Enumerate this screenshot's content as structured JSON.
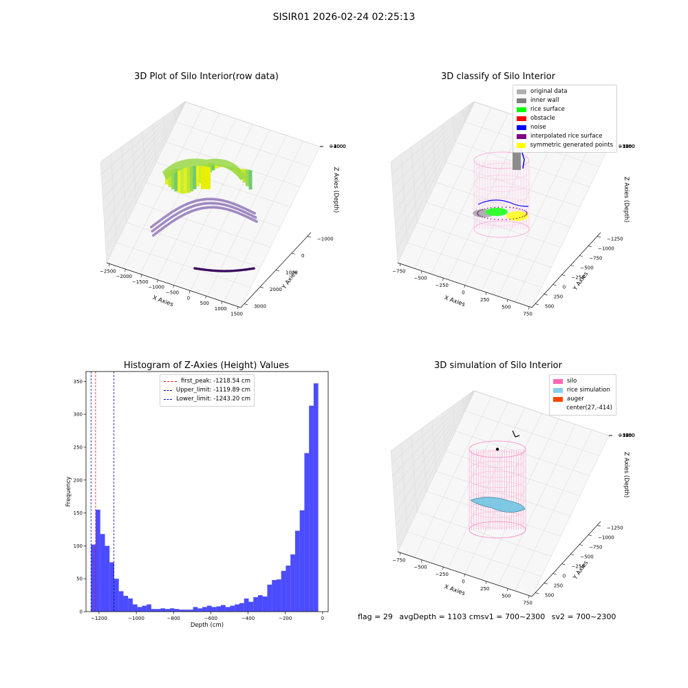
{
  "figure_title": "SISIR01 2026-02-24 02:25:13",
  "panels": {
    "raw": {
      "title": "3D Plot of Silo Interior(row data)",
      "xlabel": "X Axies",
      "ylabel": "Y Axies",
      "zlabel": "Z Axies (Depth)",
      "xticks": [
        "−2500",
        "−2000",
        "−1500",
        "−1000",
        "−500",
        "0",
        "500",
        "1000",
        "1500"
      ],
      "yticks": [
        "−1000",
        "0",
        "1000",
        "2000",
        "3000"
      ],
      "zticks": [
        "0",
        "−1000",
        "−2000",
        "−3000",
        "−4000"
      ]
    },
    "classify": {
      "title": "3D classify of Silo Interior",
      "xlabel": "X Axies",
      "ylabel": "Y Axies",
      "zlabel": "Z Axies (Depth)",
      "xticks": [
        "−750",
        "−500",
        "−250",
        "0",
        "250",
        "500",
        "750"
      ],
      "yticks": [
        "−1250",
        "−1000",
        "−750",
        "−500",
        "−250",
        "0",
        "250",
        "500"
      ],
      "zticks": [
        "0",
        "−250",
        "−500",
        "−750",
        "−1000",
        "−1250",
        "−1500",
        "−1750"
      ],
      "legend": [
        {
          "label": "original data",
          "color": "#b0b0b0"
        },
        {
          "label": "inner wall",
          "color": "#808080"
        },
        {
          "label": "rice surface",
          "color": "#00ff00"
        },
        {
          "label": "obstacle",
          "color": "#ff0000"
        },
        {
          "label": "noise",
          "color": "#0000ff"
        },
        {
          "label": "interpolated rice surface",
          "color": "#800080"
        },
        {
          "label": "symmetric generated points",
          "color": "#ffff00"
        }
      ]
    },
    "simulation": {
      "title": "3D simulation of Silo Interior",
      "xlabel": "X Axies",
      "ylabel": "Y Axies",
      "zlabel": "Z Axies (Depth)",
      "xticks": [
        "−750",
        "−500",
        "−250",
        "0",
        "250",
        "500",
        "750"
      ],
      "yticks": [
        "−1250",
        "−1000",
        "−750",
        "−500",
        "−250",
        "0",
        "250",
        "500"
      ],
      "zticks": [
        "0",
        "−250",
        "−500",
        "−750",
        "−1000",
        "−1250",
        "−1500",
        "−1750"
      ],
      "legend": [
        {
          "label": "silo",
          "color": "#ff69b4"
        },
        {
          "label": "rice simulation",
          "color": "#87ceeb"
        },
        {
          "label": "auger",
          "color": "#ff4500"
        },
        {
          "label": "center(27,-414)",
          "color": ""
        }
      ]
    }
  },
  "chart_data": {
    "type": "bar",
    "title": "Histogram of Z-Axies (Height) Values",
    "xlabel": "Depth (cm)",
    "ylabel": "Frequency",
    "xlim": [
      -1270,
      30
    ],
    "ylim": [
      0,
      365
    ],
    "xticks": [
      -1200,
      -1000,
      -800,
      -600,
      -400,
      -200,
      0
    ],
    "yticks": [
      0,
      50,
      100,
      150,
      200,
      250,
      300,
      350
    ],
    "bar_color": "#0000ff",
    "bin_width": 24.9,
    "bin_start": -1243.2,
    "values": [
      102,
      155,
      118,
      100,
      75,
      50,
      31,
      24,
      20,
      11,
      7,
      9,
      11,
      4,
      4,
      5,
      4,
      5,
      4,
      3,
      3,
      3,
      7,
      5,
      7,
      9,
      7,
      8,
      10,
      7,
      9,
      11,
      13,
      20,
      15,
      22,
      25,
      23,
      41,
      48,
      49,
      62,
      70,
      87,
      123,
      154,
      241,
      313,
      347
    ],
    "vlines": [
      {
        "label": "first_peak: -1218.54 cm",
        "x": -1218.54,
        "color": "#ff0000"
      },
      {
        "label": "Upper_limit: -1119.89 cm",
        "x": -1119.89,
        "color": "#00008b"
      },
      {
        "label": "Lower_limit: -1243.20 cm",
        "x": -1243.2,
        "color": "#0000cd"
      }
    ]
  },
  "footer": {
    "flag": "flag = 29",
    "avg": "avgDepth = 1103 cm",
    "sv1": "sv1 = 700~2300",
    "sv2": "sv2 = 700~2300"
  }
}
